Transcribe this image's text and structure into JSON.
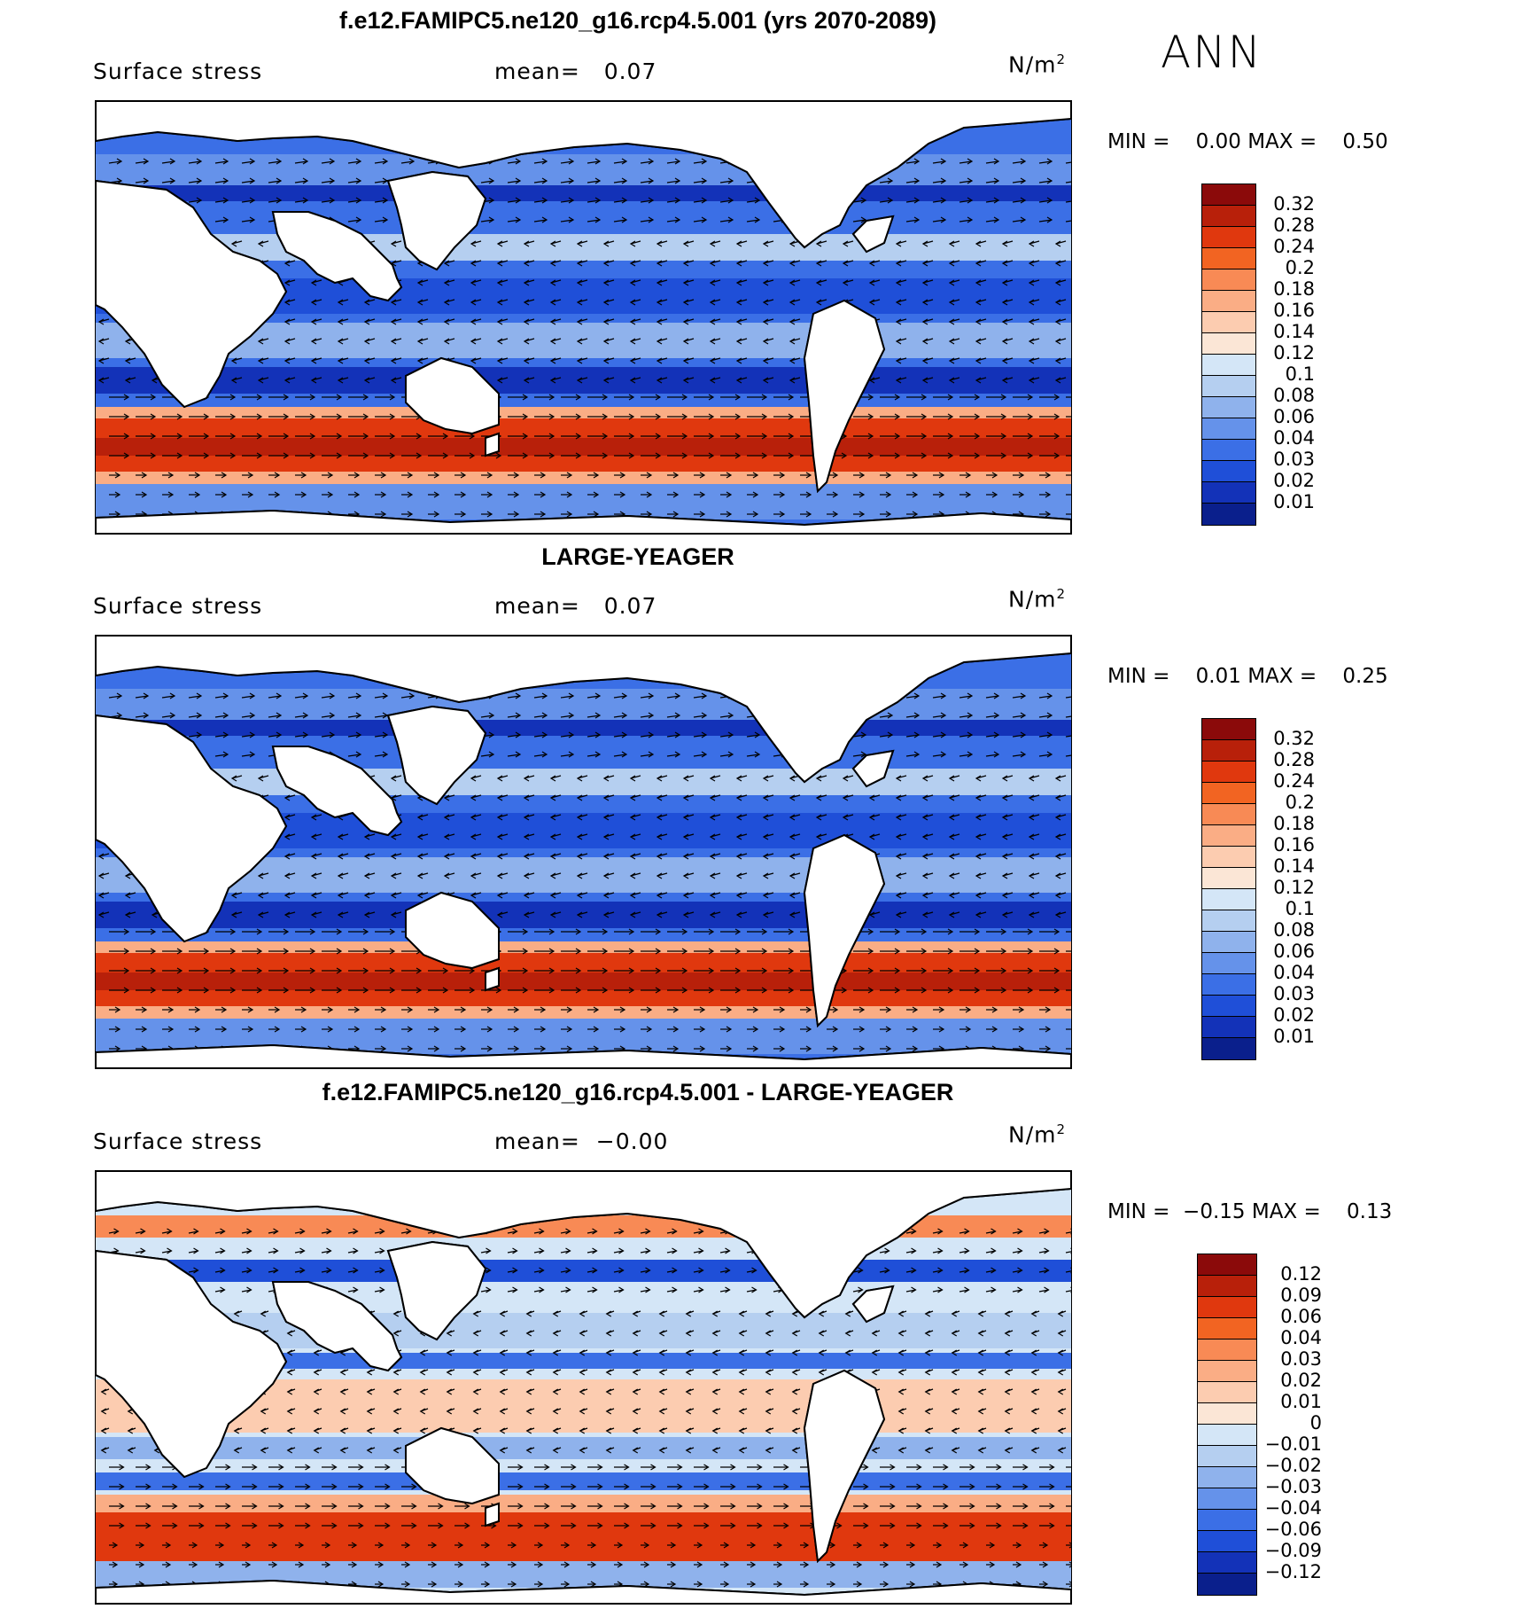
{
  "season": "ANN",
  "panels": [
    {
      "title": "f.e12.FAMIPC5.ne120_g16.rcp4.5.001 (yrs 2070-2089)",
      "left_label": "Surface stress",
      "mean_label": "mean=",
      "mean_value": "0.07",
      "units": "N/m",
      "units_exp": "2",
      "min_label": "MIN =",
      "min_value": "0.00",
      "max_label": "MAX =",
      "max_value": "0.50",
      "colorbar": {
        "ticks": [
          "0.32",
          "0.28",
          "0.24",
          "0.2",
          "0.18",
          "0.16",
          "0.14",
          "0.12",
          "0.1",
          "0.08",
          "0.06",
          "0.04",
          "0.03",
          "0.02",
          "0.01"
        ],
        "colors": [
          "#8b0a0a",
          "#b8200a",
          "#e0380e",
          "#f26422",
          "#f88a55",
          "#faad85",
          "#fcccb0",
          "#fbe6d6",
          "#d4e6f7",
          "#b5cff0",
          "#8fb2ec",
          "#6592ea",
          "#3b6fe6",
          "#1f4fd8",
          "#1332b8",
          "#0a1f8c"
        ]
      }
    },
    {
      "title": "LARGE-YEAGER",
      "left_label": "Surface stress",
      "mean_label": "mean=",
      "mean_value": "0.07",
      "units": "N/m",
      "units_exp": "2",
      "min_label": "MIN =",
      "min_value": "0.01",
      "max_label": "MAX =",
      "max_value": "0.25",
      "colorbar": {
        "ticks": [
          "0.32",
          "0.28",
          "0.24",
          "0.2",
          "0.18",
          "0.16",
          "0.14",
          "0.12",
          "0.1",
          "0.08",
          "0.06",
          "0.04",
          "0.03",
          "0.02",
          "0.01"
        ],
        "colors": [
          "#8b0a0a",
          "#b8200a",
          "#e0380e",
          "#f26422",
          "#f88a55",
          "#faad85",
          "#fcccb0",
          "#fbe6d6",
          "#d4e6f7",
          "#b5cff0",
          "#8fb2ec",
          "#6592ea",
          "#3b6fe6",
          "#1f4fd8",
          "#1332b8",
          "#0a1f8c"
        ]
      }
    },
    {
      "title": "f.e12.FAMIPC5.ne120_g16.rcp4.5.001 - LARGE-YEAGER",
      "left_label": "Surface stress",
      "mean_label": "mean=",
      "mean_value": "−0.00",
      "units": "N/m",
      "units_exp": "2",
      "min_label": "MIN =",
      "min_value": "−0.15",
      "max_label": "MAX =",
      "max_value": "0.13",
      "colorbar": {
        "ticks": [
          "0.12",
          "0.09",
          "0.06",
          "0.04",
          "0.03",
          "0.02",
          "0.01",
          "0",
          "−0.01",
          "−0.02",
          "−0.03",
          "−0.04",
          "−0.06",
          "−0.09",
          "−0.12"
        ],
        "colors": [
          "#8b0a0a",
          "#b8200a",
          "#e0380e",
          "#f26422",
          "#f88a55",
          "#faad85",
          "#fcccb0",
          "#fbe6d6",
          "#d4e6f7",
          "#b5cff0",
          "#8fb2ec",
          "#6592ea",
          "#3b6fe6",
          "#1f4fd8",
          "#1332b8",
          "#0a1f8c"
        ]
      }
    }
  ]
}
